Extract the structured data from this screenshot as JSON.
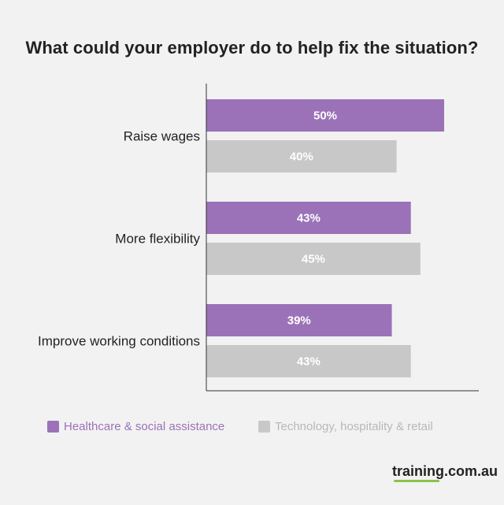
{
  "chart_data": {
    "type": "bar",
    "orientation": "horizontal",
    "title": "What could your employer do to help fix the situation?",
    "categories": [
      "Raise wages",
      "More flexibility",
      "Improve working conditions"
    ],
    "series": [
      {
        "name": "Healthcare & social assistance",
        "values": [
          50,
          43,
          39
        ],
        "labels": [
          "50%",
          "43%",
          "39%"
        ],
        "color": "#9b72b8"
      },
      {
        "name": "Technology, hospitality & retail",
        "values": [
          40,
          45,
          43
        ],
        "labels": [
          "40%",
          "45%",
          "43%"
        ],
        "color": "#c8c8c8"
      }
    ],
    "xlim": [
      0,
      58
    ],
    "legend_position": "bottom-left",
    "grid": false
  },
  "legend": {
    "items": [
      {
        "label": "Healthcare & social assistance",
        "color": "#9b72b8",
        "text_color": "#9b72b8"
      },
      {
        "label": "Technology, hospitality & retail",
        "color": "#c8c8c8",
        "text_color": "#b8b8b8"
      }
    ]
  },
  "brand": {
    "name": "training.com.au"
  }
}
